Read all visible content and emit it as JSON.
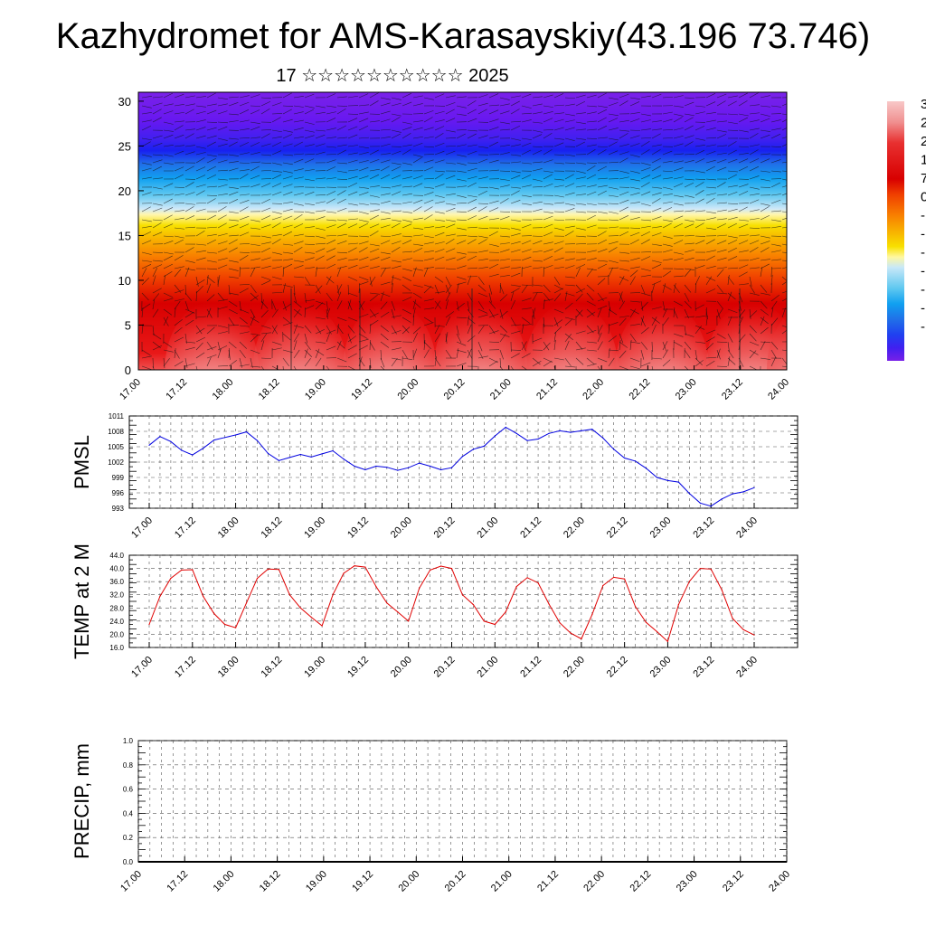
{
  "title": "Kazhydromet for AMS-Karasayskiy(43.196 73.746)",
  "subtitle": "17 ☆☆☆☆☆☆☆☆☆☆ 2025",
  "colors": {
    "pmsl_line": "#0000e0",
    "temp_line": "#e00000",
    "precip_line": "#000000",
    "grid": "#555555"
  },
  "colorbar": {
    "labels_visible": [
      "3",
      "2",
      "2",
      "1",
      "7",
      "0",
      "-",
      "-",
      "-",
      "-",
      "-",
      "-",
      "-"
    ],
    "palette": [
      "#f8c8c8",
      "#f09090",
      "#e83030",
      "#d80000",
      "#f04000",
      "#f88000",
      "#f8b000",
      "#f8e000",
      "#fff8a0",
      "#c8e8f8",
      "#60c8f0",
      "#10a0f0",
      "#2070e8",
      "#2040f0",
      "#4020f0",
      "#6818f0",
      "#7820e8"
    ]
  },
  "chart_data": [
    {
      "type": "heatmap",
      "id": "cross-section",
      "x_ticklabels": [
        "17.00",
        "17.12",
        "18.00",
        "18.12",
        "19.00",
        "19.12",
        "20.00",
        "20.12",
        "21.00",
        "21.12",
        "22.00",
        "22.12",
        "23.00",
        "23.12",
        "24.00"
      ],
      "y_ticklabels": [
        "0",
        "5",
        "10",
        "15",
        "20",
        "25",
        "30"
      ],
      "ylim": [
        0,
        31
      ],
      "description": "height-time section with wind barbs"
    },
    {
      "type": "line",
      "id": "pmsl",
      "ylabel": "PMSL",
      "ylim": [
        993,
        1011
      ],
      "y_ticklabels": [
        "993",
        "996",
        "999",
        "1002",
        "1005",
        "1008",
        "1011"
      ],
      "x_ticklabels": [
        "17.00",
        "17.12",
        "18.00",
        "18.12",
        "19.00",
        "19.12",
        "20.00",
        "20.12",
        "21.00",
        "21.12",
        "22.00",
        "22.12",
        "23.00",
        "23.12",
        "24.00"
      ],
      "series": [
        {
          "values": [
            1005.3,
            1007.0,
            1006.0,
            1004.3,
            1003.4,
            1004.7,
            1006.3,
            1006.8,
            1007.3,
            1007.9,
            1006.2,
            1003.7,
            1002.3,
            1002.9,
            1003.5,
            1003.0,
            1003.6,
            1004.2,
            1002.6,
            1001.2,
            1000.5,
            1001.2,
            1001.0,
            1000.4,
            1000.9,
            1001.8,
            1001.2,
            1000.5,
            1000.9,
            1003.1,
            1004.5,
            1005.1,
            1007.1,
            1008.8,
            1007.6,
            1006.2,
            1006.5,
            1007.6,
            1008.1,
            1007.8,
            1008.1,
            1008.4,
            1006.7,
            1004.5,
            1002.8,
            1002.2,
            1000.8,
            999.0,
            998.4,
            998.1,
            995.9,
            994.0,
            993.4,
            994.8,
            995.8,
            996.2,
            997.0
          ]
        }
      ]
    },
    {
      "type": "line",
      "id": "temp",
      "ylabel": "TEMP at 2 M",
      "ylim": [
        16,
        44
      ],
      "y_ticklabels": [
        "16.0",
        "20.0",
        "24.0",
        "28.0",
        "32.0",
        "36.0",
        "40.0",
        "44.0"
      ],
      "x_ticklabels": [
        "17.00",
        "17.12",
        "18.00",
        "18.12",
        "19.00",
        "19.12",
        "20.00",
        "20.12",
        "21.00",
        "21.12",
        "22.00",
        "22.12",
        "23.00",
        "23.12",
        "24.00"
      ],
      "series": [
        {
          "values": [
            23.0,
            31.5,
            37.0,
            39.5,
            39.6,
            31.5,
            26.3,
            23.0,
            22.0,
            29.5,
            37.0,
            39.8,
            39.7,
            32.0,
            28.0,
            25.2,
            22.6,
            32.0,
            38.5,
            40.8,
            40.4,
            34.5,
            29.5,
            26.8,
            24.0,
            34.0,
            39.5,
            40.7,
            40.0,
            32.0,
            29.0,
            24.0,
            23.0,
            26.8,
            34.5,
            37.2,
            35.6,
            29.2,
            23.5,
            20.4,
            18.6,
            26.0,
            34.8,
            37.3,
            36.8,
            28.4,
            23.6,
            20.8,
            17.8,
            29.0,
            36.0,
            40.0,
            39.8,
            33.5,
            24.8,
            21.4,
            19.8
          ]
        }
      ]
    },
    {
      "type": "line",
      "id": "precip",
      "ylabel": "PRECIP, mm",
      "ylim": [
        0.0,
        1.0
      ],
      "y_ticklabels": [
        "0.0",
        "0.2",
        "0.4",
        "0.6",
        "0.8",
        "1.0"
      ],
      "x_ticklabels": [
        "17.00",
        "17.12",
        "18.00",
        "18.12",
        "19.00",
        "19.12",
        "20.00",
        "20.12",
        "21.00",
        "21.12",
        "22.00",
        "22.12",
        "23.00",
        "23.12",
        "24.00"
      ],
      "series": [
        {
          "values": [
            0,
            0,
            0,
            0,
            0,
            0,
            0,
            0,
            0,
            0,
            0,
            0,
            0,
            0,
            0,
            0,
            0,
            0,
            0,
            0,
            0,
            0,
            0,
            0,
            0,
            0,
            0,
            0,
            0,
            0,
            0,
            0,
            0,
            0,
            0,
            0,
            0,
            0,
            0,
            0,
            0,
            0,
            0,
            0,
            0,
            0,
            0,
            0,
            0,
            0,
            0,
            0,
            0,
            0,
            0,
            0,
            0
          ]
        }
      ]
    }
  ]
}
